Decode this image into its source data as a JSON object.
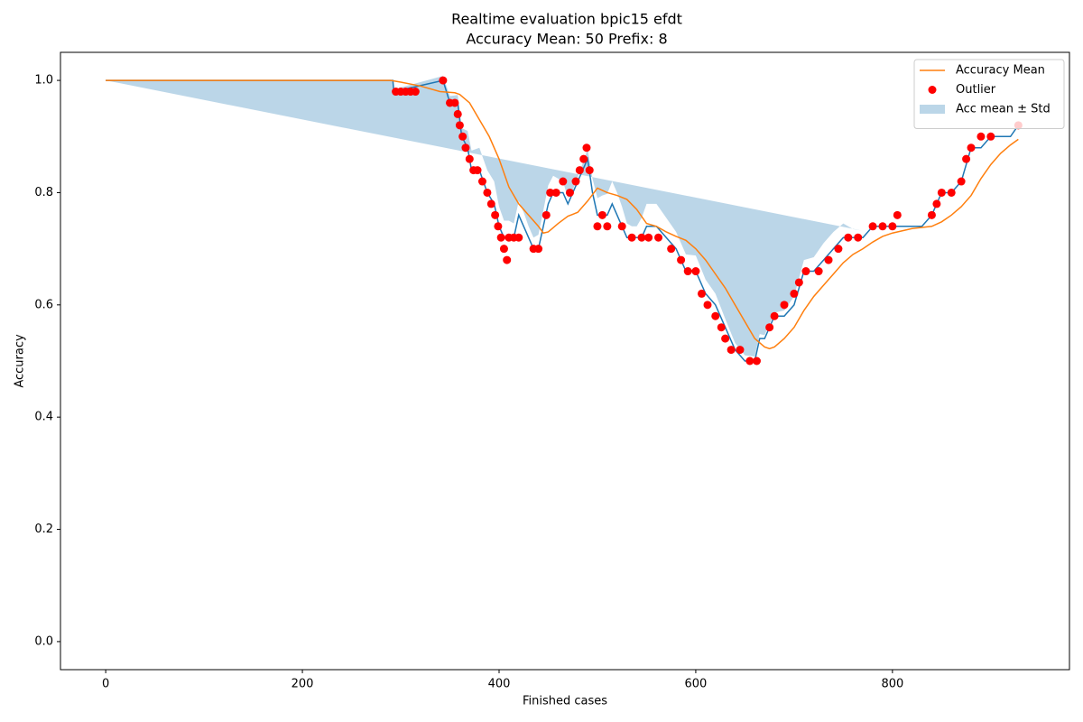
{
  "chart_data": {
    "type": "line",
    "title": "Realtime evaluation bpic15 efdt",
    "subtitle": "Accuracy Mean: 50 Prefix: 8",
    "x_label": "Finished cases",
    "y_label": "Accuracy",
    "xlim": [
      -46,
      980
    ],
    "ylim": [
      -0.05,
      1.05
    ],
    "xticks": [
      0,
      200,
      400,
      600,
      800
    ],
    "yticks": [
      {
        "value": 0,
        "label": "0.0"
      },
      0.2,
      0.4,
      0.6,
      0.8,
      {
        "value": 1,
        "label": "1.0"
      }
    ],
    "legend": "upper right",
    "series": [
      {
        "kind": "line",
        "color": "#1f77b4",
        "x": [
          0,
          292,
          293,
          343,
          350,
          358,
          362,
          368,
          372,
          380,
          388,
          395,
          400,
          405,
          410,
          415,
          420,
          425,
          430,
          435,
          440,
          445,
          450,
          455,
          460,
          465,
          470,
          475,
          480,
          485,
          490,
          495,
          500,
          505,
          510,
          515,
          520,
          525,
          530,
          535,
          540,
          545,
          550,
          560,
          570,
          580,
          590,
          600,
          610,
          620,
          630,
          640,
          650,
          660,
          665,
          670,
          680,
          690,
          700,
          710,
          720,
          730,
          740,
          750,
          760,
          770,
          780,
          790,
          800,
          810,
          820,
          830,
          840,
          850,
          860,
          870,
          880,
          890,
          900,
          910,
          920,
          928
        ],
        "values": [
          1.0,
          1.0,
          0.98,
          1.0,
          0.96,
          0.96,
          0.9,
          0.88,
          0.84,
          0.84,
          0.8,
          0.78,
          0.74,
          0.72,
          0.72,
          0.72,
          0.76,
          0.74,
          0.72,
          0.7,
          0.7,
          0.74,
          0.78,
          0.8,
          0.8,
          0.8,
          0.78,
          0.8,
          0.82,
          0.84,
          0.86,
          0.8,
          0.76,
          0.76,
          0.76,
          0.78,
          0.76,
          0.74,
          0.72,
          0.72,
          0.72,
          0.72,
          0.74,
          0.74,
          0.72,
          0.7,
          0.66,
          0.66,
          0.62,
          0.6,
          0.56,
          0.52,
          0.5,
          0.5,
          0.54,
          0.54,
          0.58,
          0.58,
          0.6,
          0.66,
          0.66,
          0.68,
          0.7,
          0.72,
          0.72,
          0.72,
          0.74,
          0.74,
          0.74,
          0.74,
          0.74,
          0.74,
          0.76,
          0.8,
          0.8,
          0.82,
          0.88,
          0.88,
          0.9,
          0.9,
          0.9,
          0.92
        ]
      },
      {
        "kind": "line",
        "name": "Accuracy Mean",
        "color": "#ff7f0e",
        "x": [
          0,
          290,
          300,
          320,
          340,
          355,
          360,
          370,
          380,
          390,
          400,
          410,
          420,
          430,
          440,
          445,
          450,
          460,
          470,
          480,
          490,
          500,
          510,
          520,
          530,
          540,
          550,
          560,
          570,
          580,
          590,
          600,
          610,
          620,
          630,
          640,
          650,
          660,
          670,
          675,
          680,
          690,
          700,
          710,
          720,
          730,
          740,
          750,
          760,
          770,
          780,
          790,
          800,
          810,
          820,
          830,
          840,
          850,
          860,
          870,
          880,
          890,
          900,
          910,
          920,
          928
        ],
        "values": [
          1.0,
          1.0,
          0.997,
          0.99,
          0.98,
          0.978,
          0.975,
          0.96,
          0.93,
          0.9,
          0.86,
          0.81,
          0.78,
          0.76,
          0.74,
          0.728,
          0.73,
          0.745,
          0.758,
          0.765,
          0.785,
          0.808,
          0.8,
          0.795,
          0.788,
          0.77,
          0.745,
          0.74,
          0.73,
          0.722,
          0.715,
          0.7,
          0.68,
          0.655,
          0.63,
          0.6,
          0.57,
          0.54,
          0.525,
          0.522,
          0.525,
          0.54,
          0.56,
          0.59,
          0.615,
          0.635,
          0.655,
          0.675,
          0.69,
          0.7,
          0.712,
          0.722,
          0.728,
          0.732,
          0.736,
          0.738,
          0.74,
          0.748,
          0.76,
          0.775,
          0.795,
          0.825,
          0.85,
          0.87,
          0.885,
          0.895
        ]
      },
      {
        "kind": "scatter",
        "name": "Outlier",
        "color": "#ff0000",
        "x": [
          295,
          300,
          305,
          310,
          315,
          343,
          350,
          355,
          358,
          360,
          363,
          366,
          370,
          374,
          378,
          383,
          388,
          392,
          396,
          399,
          402,
          405,
          408,
          410,
          415,
          420,
          435,
          440,
          448,
          452,
          458,
          465,
          472,
          478,
          482,
          486,
          489,
          492,
          500,
          505,
          510,
          525,
          535,
          545,
          552,
          562,
          575,
          585,
          592,
          600,
          606,
          612,
          620,
          626,
          630,
          636,
          645,
          655,
          662,
          675,
          680,
          690,
          700,
          705,
          712,
          725,
          735,
          745,
          755,
          765,
          780,
          790,
          800,
          805,
          840,
          845,
          850,
          860,
          870,
          875,
          880,
          890,
          900,
          928
        ],
        "values": [
          0.98,
          0.98,
          0.98,
          0.98,
          0.98,
          1.0,
          0.96,
          0.96,
          0.94,
          0.92,
          0.9,
          0.88,
          0.86,
          0.84,
          0.84,
          0.82,
          0.8,
          0.78,
          0.76,
          0.74,
          0.72,
          0.7,
          0.68,
          0.72,
          0.72,
          0.72,
          0.7,
          0.7,
          0.76,
          0.8,
          0.8,
          0.82,
          0.8,
          0.82,
          0.84,
          0.86,
          0.88,
          0.84,
          0.74,
          0.76,
          0.74,
          0.74,
          0.72,
          0.72,
          0.72,
          0.72,
          0.7,
          0.68,
          0.66,
          0.66,
          0.62,
          0.6,
          0.58,
          0.56,
          0.54,
          0.52,
          0.52,
          0.5,
          0.5,
          0.56,
          0.58,
          0.6,
          0.62,
          0.64,
          0.66,
          0.66,
          0.68,
          0.7,
          0.72,
          0.72,
          0.74,
          0.74,
          0.74,
          0.76,
          0.76,
          0.78,
          0.8,
          0.8,
          0.82,
          0.86,
          0.88,
          0.9,
          0.9,
          0.92
        ]
      },
      {
        "kind": "band",
        "name": "Acc mean ± Std",
        "color": "#1f77b4",
        "values": [
          0,
          0,
          0.004,
          0.008,
          0.012,
          0.014,
          0.015,
          0.03,
          0.035,
          0.04,
          0.04,
          0.04,
          0.035,
          0.03,
          0.03,
          0.025,
          0.025,
          0.025,
          0.02,
          0.02,
          0.025,
          0.028,
          0.033,
          0.03,
          0.025,
          0.02,
          0.01,
          0.005,
          0.008,
          0.012,
          0.018,
          0.025,
          0.03,
          0.035,
          0.038,
          0.04,
          0.04,
          0.035,
          0.025,
          0.02,
          0.02,
          0.035,
          0.04,
          0.04,
          0.035,
          0.03,
          0.03,
          0.028,
          0.025,
          0.02,
          0.015,
          0.012,
          0.01,
          0.008,
          0.008,
          0.006,
          0.006,
          0.01,
          0.015,
          0.02,
          0.025,
          0.03,
          0.03,
          0.025,
          0.015,
          0.012
        ]
      }
    ]
  }
}
